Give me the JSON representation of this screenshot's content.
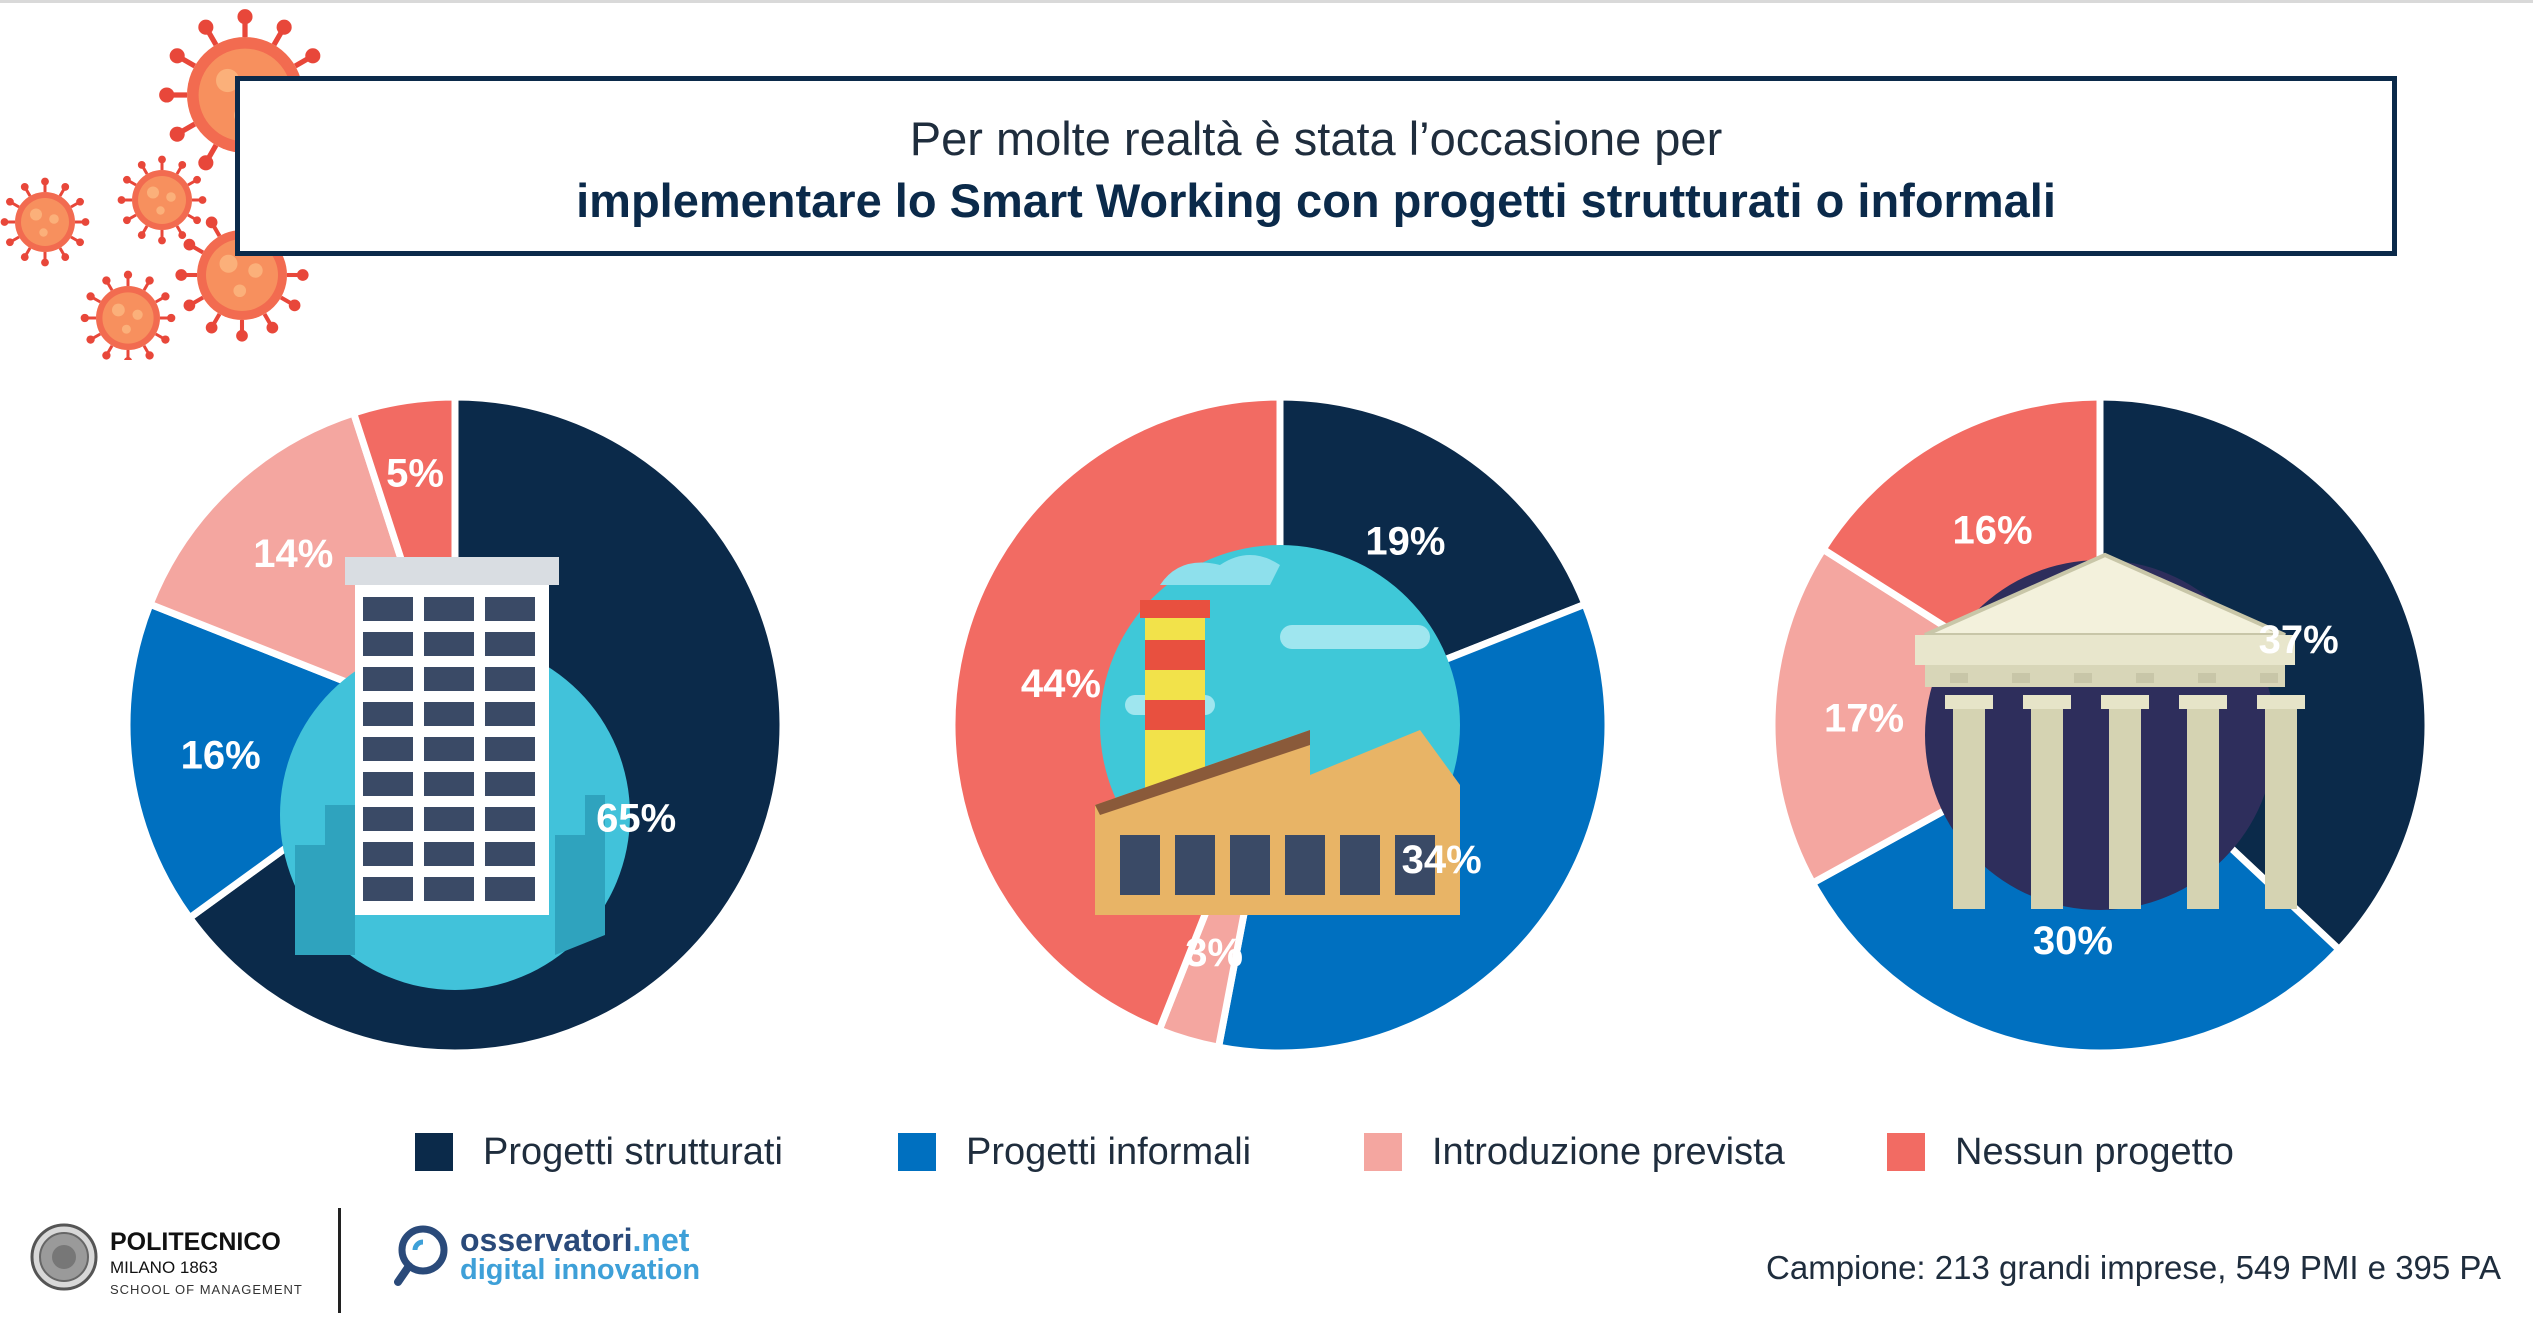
{
  "title": {
    "line1": "Per molte realtà è stata l’occasione per",
    "line2": "implementare lo Smart Working con progetti strutturati o informali"
  },
  "colors": {
    "strutturati": "#0b2a4a",
    "informali": "#0070c0",
    "prevista": "#f4a6a0",
    "nessuno": "#f26b63",
    "title_border": "#0b2a4a"
  },
  "icons": [
    "coronavirus-icon",
    "office-building-icon",
    "factory-icon",
    "government-building-icon"
  ],
  "legend": [
    {
      "label": "Progetti strutturati",
      "color": "#0b2a4a"
    },
    {
      "label": "Progetti informali",
      "color": "#0070c0"
    },
    {
      "label": "Introduzione prevista",
      "color": "#f4a6a0"
    },
    {
      "label": "Nessun progetto",
      "color": "#f26b63"
    }
  ],
  "chart_data": [
    {
      "type": "pie",
      "title": "",
      "categories": [
        "Progetti strutturati",
        "Progetti informali",
        "Introduzione prevista",
        "Nessun progetto"
      ],
      "values": [
        65,
        16,
        14,
        5
      ],
      "labels": [
        "65%",
        "16%",
        "14%",
        "5%"
      ],
      "icon": "office-building-icon"
    },
    {
      "type": "pie",
      "title": "",
      "categories": [
        "Progetti strutturati",
        "Progetti informali",
        "Introduzione prevista",
        "Nessun progetto"
      ],
      "values": [
        19,
        34,
        3,
        44
      ],
      "labels": [
        "19%",
        "34%",
        "3%",
        "44%"
      ],
      "icon": "factory-icon"
    },
    {
      "type": "pie",
      "title": "",
      "categories": [
        "Progetti strutturati",
        "Progetti informali",
        "Introduzione prevista",
        "Nessun progetto"
      ],
      "values": [
        37,
        30,
        17,
        16
      ],
      "labels": [
        "37%",
        "30%",
        "17%",
        "16%"
      ],
      "icon": "government-building-icon"
    }
  ],
  "footer": {
    "polimi_name": "POLITECNICO",
    "polimi_sub": "MILANO 1863",
    "polimi_sub2": "SCHOOL OF MANAGEMENT",
    "obs_name": "osservatori",
    "obs_net": ".net",
    "obs_tag": "digital innovation",
    "sample": "Campione: 213 grandi imprese, 549 PMI e 395 PA"
  }
}
